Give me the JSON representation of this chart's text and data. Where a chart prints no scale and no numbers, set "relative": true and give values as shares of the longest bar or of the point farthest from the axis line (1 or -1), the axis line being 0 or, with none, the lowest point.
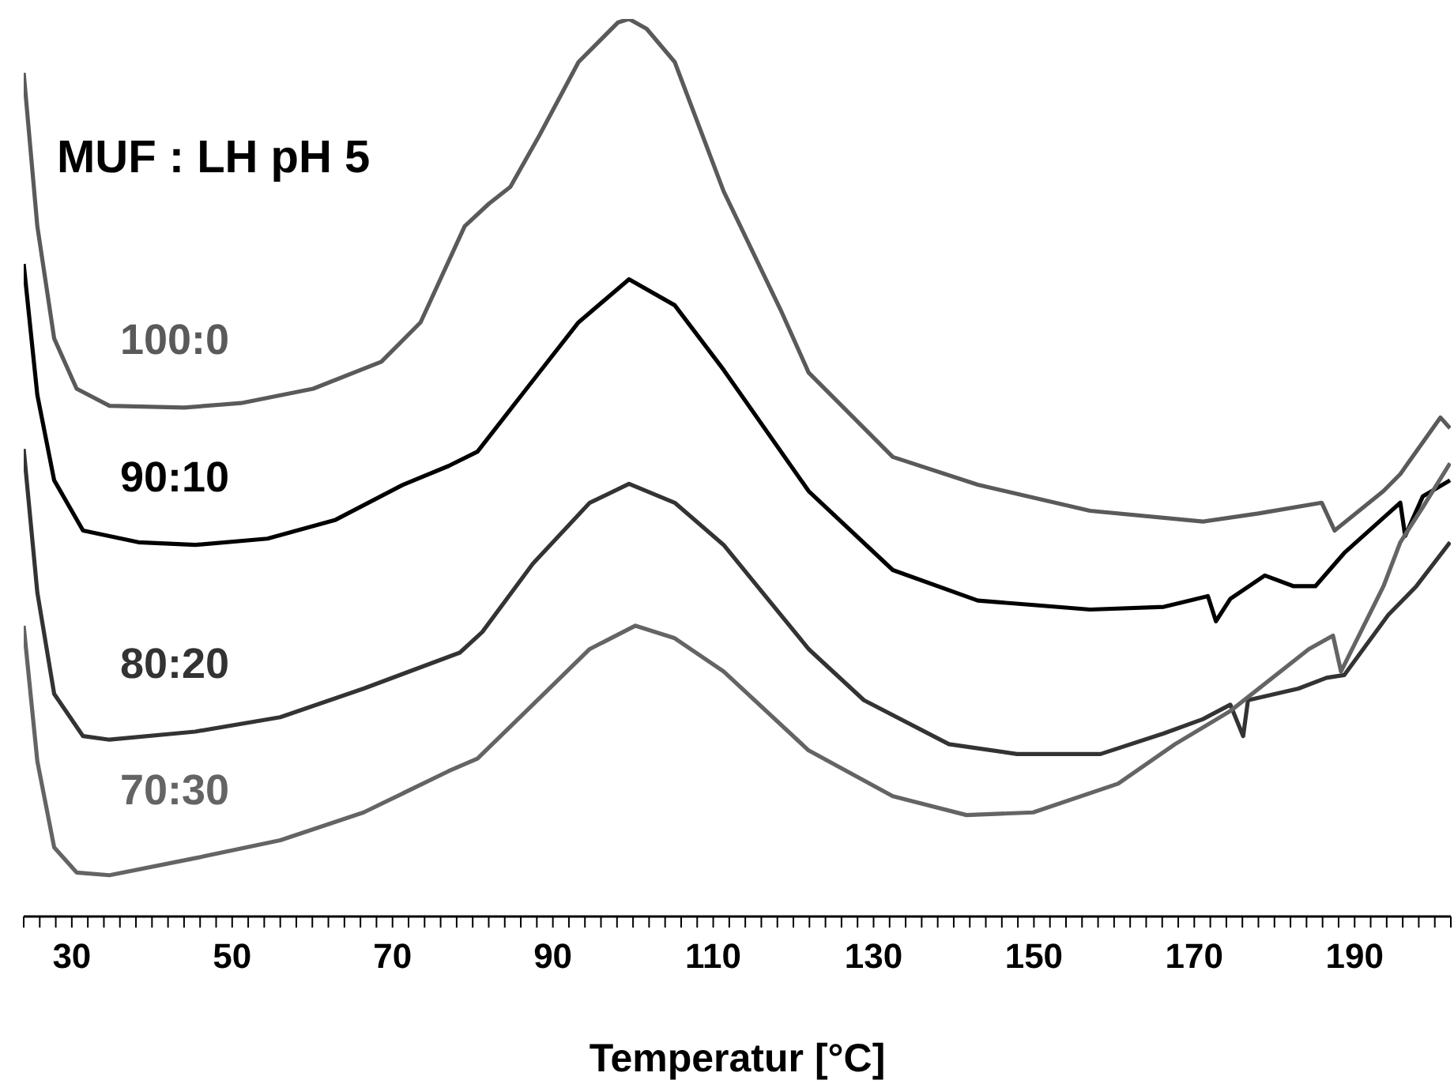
{
  "chart_data": {
    "type": "line",
    "title": "MUF : LH pH 5",
    "xlabel": "Temperatur [°C]",
    "relative": true,
    "xlim": [
      24,
      202
    ],
    "xticks": [
      {
        "value": 24,
        "label": null
      },
      {
        "value": 26,
        "label": null
      },
      {
        "value": 28,
        "label": null
      },
      30,
      {
        "value": 32,
        "label": null
      },
      {
        "value": 34,
        "label": null
      },
      {
        "value": 36,
        "label": null
      },
      {
        "value": 38,
        "label": null
      },
      {
        "value": 40,
        "label": null
      },
      {
        "value": 42,
        "label": null
      },
      {
        "value": 44,
        "label": null
      },
      {
        "value": 46,
        "label": null
      },
      {
        "value": 48,
        "label": null
      },
      50,
      {
        "value": 52,
        "label": null
      },
      {
        "value": 54,
        "label": null
      },
      {
        "value": 56,
        "label": null
      },
      {
        "value": 58,
        "label": null
      },
      {
        "value": 60,
        "label": null
      },
      {
        "value": 62,
        "label": null
      },
      {
        "value": 64,
        "label": null
      },
      {
        "value": 66,
        "label": null
      },
      {
        "value": 68,
        "label": null
      },
      70,
      {
        "value": 72,
        "label": null
      },
      {
        "value": 74,
        "label": null
      },
      {
        "value": 76,
        "label": null
      },
      {
        "value": 78,
        "label": null
      },
      {
        "value": 80,
        "label": null
      },
      {
        "value": 82,
        "label": null
      },
      {
        "value": 84,
        "label": null
      },
      {
        "value": 86,
        "label": null
      },
      {
        "value": 88,
        "label": null
      },
      90,
      {
        "value": 92,
        "label": null
      },
      {
        "value": 94,
        "label": null
      },
      {
        "value": 96,
        "label": null
      },
      {
        "value": 98,
        "label": null
      },
      {
        "value": 100,
        "label": null
      },
      {
        "value": 102,
        "label": null
      },
      {
        "value": 104,
        "label": null
      },
      {
        "value": 106,
        "label": null
      },
      {
        "value": 108,
        "label": null
      },
      110,
      {
        "value": 112,
        "label": null
      },
      {
        "value": 114,
        "label": null
      },
      {
        "value": 116,
        "label": null
      },
      {
        "value": 118,
        "label": null
      },
      {
        "value": 120,
        "label": null
      },
      {
        "value": 122,
        "label": null
      },
      {
        "value": 124,
        "label": null
      },
      {
        "value": 126,
        "label": null
      },
      {
        "value": 128,
        "label": null
      },
      130,
      {
        "value": 132,
        "label": null
      },
      {
        "value": 134,
        "label": null
      },
      {
        "value": 136,
        "label": null
      },
      {
        "value": 138,
        "label": null
      },
      {
        "value": 140,
        "label": null
      },
      {
        "value": 142,
        "label": null
      },
      {
        "value": 144,
        "label": null
      },
      {
        "value": 146,
        "label": null
      },
      {
        "value": 148,
        "label": null
      },
      150,
      {
        "value": 152,
        "label": null
      },
      {
        "value": 154,
        "label": null
      },
      {
        "value": 156,
        "label": null
      },
      {
        "value": 158,
        "label": null
      },
      {
        "value": 160,
        "label": null
      },
      {
        "value": 162,
        "label": null
      },
      {
        "value": 164,
        "label": null
      },
      {
        "value": 166,
        "label": null
      },
      {
        "value": 168,
        "label": null
      },
      170,
      {
        "value": 172,
        "label": null
      },
      {
        "value": 174,
        "label": null
      },
      {
        "value": 176,
        "label": null
      },
      {
        "value": 178,
        "label": null
      },
      {
        "value": 180,
        "label": null
      },
      {
        "value": 182,
        "label": null
      },
      {
        "value": 184,
        "label": null
      },
      {
        "value": 186,
        "label": null
      },
      {
        "value": 188,
        "label": null
      },
      190,
      {
        "value": 192,
        "label": null
      },
      {
        "value": 194,
        "label": null
      },
      {
        "value": 196,
        "label": null
      },
      {
        "value": 198,
        "label": null
      },
      {
        "value": 200,
        "label": null
      },
      {
        "value": 202,
        "label": null
      }
    ],
    "series": [
      {
        "name": "100:0",
        "color": "#5a5a5a",
        "x": [
          24,
          25.7,
          27.8,
          30.6,
          34.7,
          44,
          51.1,
          60.1,
          68.6,
          73.5,
          79,
          82,
          84.7,
          88.3,
          93.2,
          98.1,
          99.5,
          101.7,
          105.2,
          111.3,
          118.4,
          121.9,
          132.4,
          143,
          157,
          171.1,
          178,
          185.9,
          187.5,
          193.6,
          195.7,
          200.7,
          201.9
        ],
        "values": [
          0.94,
          0.769,
          0.644,
          0.588,
          0.569,
          0.567,
          0.572,
          0.588,
          0.618,
          0.662,
          0.769,
          0.794,
          0.813,
          0.87,
          0.952,
          0.996,
          1,
          0.989,
          0.952,
          0.808,
          0.676,
          0.606,
          0.512,
          0.481,
          0.452,
          0.44,
          0.449,
          0.461,
          0.43,
          0.474,
          0.493,
          0.556,
          0.544
        ]
      },
      {
        "name": "90:10",
        "color": "#000000",
        "x": [
          24,
          25.7,
          27.8,
          31.4,
          38.3,
          45.4,
          54.4,
          62.9,
          71.3,
          77,
          80.6,
          86.1,
          93.2,
          99.5,
          105.2,
          111.3,
          121.9,
          132.4,
          143,
          157,
          166.2,
          171.7,
          172.7,
          174.5,
          178.8,
          182.4,
          185.1,
          188.7,
          194.2,
          195.7,
          196.3,
          198.5,
          201.9
        ],
        "values": [
          0.727,
          0.581,
          0.486,
          0.43,
          0.417,
          0.414,
          0.421,
          0.442,
          0.481,
          0.502,
          0.518,
          0.581,
          0.662,
          0.71,
          0.681,
          0.609,
          0.474,
          0.386,
          0.352,
          0.342,
          0.345,
          0.357,
          0.329,
          0.354,
          0.38,
          0.368,
          0.368,
          0.405,
          0.449,
          0.461,
          0.424,
          0.468,
          0.486
        ]
      },
      {
        "name": "80:20",
        "color": "#333333",
        "x": [
          24,
          25.7,
          27.8,
          31.4,
          34.7,
          45.4,
          56,
          66.4,
          78.4,
          81.2,
          87.5,
          94.6,
          99.5,
          105.2,
          111.3,
          121.9,
          128.8,
          139.4,
          147.9,
          158.3,
          166.2,
          171.1,
          174.5,
          176.1,
          176.7,
          183,
          186.5,
          188.7,
          194.2,
          197.7,
          201.9
        ],
        "values": [
          0.521,
          0.361,
          0.248,
          0.201,
          0.197,
          0.206,
          0.222,
          0.254,
          0.294,
          0.317,
          0.393,
          0.461,
          0.482,
          0.461,
          0.414,
          0.298,
          0.241,
          0.192,
          0.181,
          0.181,
          0.204,
          0.22,
          0.236,
          0.201,
          0.241,
          0.254,
          0.266,
          0.269,
          0.336,
          0.368,
          0.417
        ]
      },
      {
        "name": "70:30",
        "color": "#646464",
        "x": [
          24,
          25.7,
          27.8,
          30.6,
          34.7,
          45.4,
          56,
          66.4,
          77,
          80.6,
          87.5,
          94.6,
          100.3,
          105.2,
          111.3,
          121.9,
          132.4,
          141.6,
          149.9,
          160.5,
          167.6,
          174.5,
          184.3,
          187.3,
          188.3,
          193.6,
          195.7,
          198.5,
          201.9
        ],
        "values": [
          0.324,
          0.173,
          0.077,
          0.049,
          0.046,
          0.065,
          0.085,
          0.116,
          0.162,
          0.176,
          0.236,
          0.298,
          0.324,
          0.31,
          0.273,
          0.185,
          0.134,
          0.113,
          0.116,
          0.148,
          0.192,
          0.229,
          0.298,
          0.313,
          0.273,
          0.368,
          0.417,
          0.456,
          0.505
        ]
      }
    ]
  }
}
